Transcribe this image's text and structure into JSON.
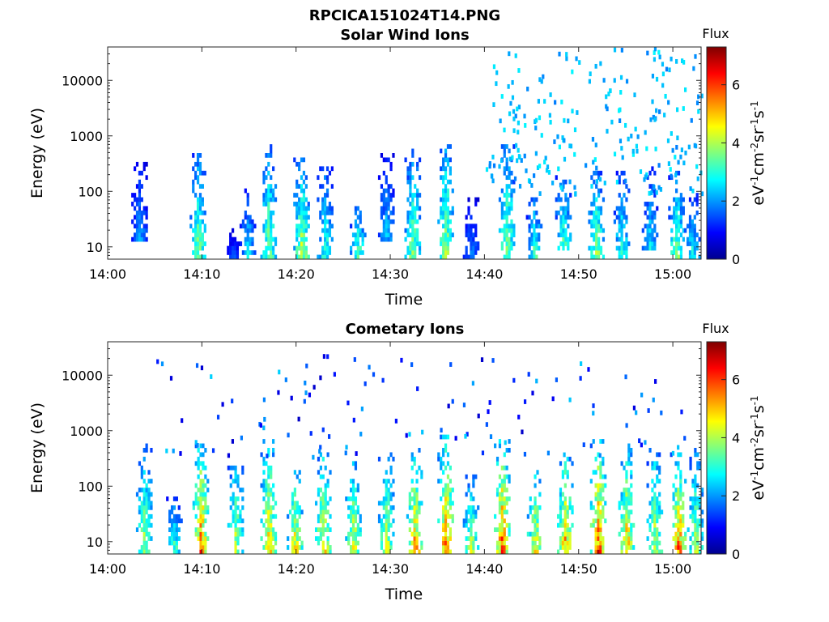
{
  "figure_title": "RPCICA151024T14.PNG",
  "chart_data": [
    {
      "type": "heatmap",
      "title": "Solar Wind Ions",
      "xlabel": "Time",
      "ylabel": "Energy (eV)",
      "x_ticks": [
        "14:00",
        "14:10",
        "14:20",
        "14:30",
        "14:40",
        "14:50",
        "15:00"
      ],
      "x_range_minutes": [
        0,
        63
      ],
      "y_ticks": [
        "10",
        "100",
        "1000",
        "10000"
      ],
      "y_scale": "log",
      "y_range": [
        6,
        40000
      ],
      "colorbar": {
        "label": "Flux",
        "unit": "eV-1cm-2sr-1s-1",
        "ticks": [
          "0",
          "2",
          "4",
          "6"
        ],
        "range": [
          0,
          7.3
        ]
      },
      "bursts": [
        {
          "t": 3.3,
          "emin": 13,
          "emax": 350,
          "peak": 2.2
        },
        {
          "t": 9.5,
          "emin": 6,
          "emax": 450,
          "peak": 4.0
        },
        {
          "t": 13.2,
          "emin": 6,
          "emax": 20,
          "peak": 1.6
        },
        {
          "t": 14.8,
          "emin": 6,
          "emax": 120,
          "peak": 2.8
        },
        {
          "t": 17,
          "emin": 6,
          "emax": 700,
          "peak": 4.0
        },
        {
          "t": 20.5,
          "emin": 6,
          "emax": 400,
          "peak": 4.4
        },
        {
          "t": 23,
          "emin": 6,
          "emax": 300,
          "peak": 3.4
        },
        {
          "t": 26.5,
          "emin": 6,
          "emax": 50,
          "peak": 3.8
        },
        {
          "t": 29.5,
          "emin": 12,
          "emax": 500,
          "peak": 2.5
        },
        {
          "t": 32.3,
          "emin": 6,
          "emax": 600,
          "peak": 4.0
        },
        {
          "t": 35.8,
          "emin": 6,
          "emax": 800,
          "peak": 4.3
        },
        {
          "t": 38.5,
          "emin": 6,
          "emax": 80,
          "peak": 2.0
        },
        {
          "t": 42.3,
          "emin": 6,
          "emax": 700,
          "peak": 4.2
        },
        {
          "t": 45.2,
          "emin": 6,
          "emax": 80,
          "peak": 3.5
        },
        {
          "t": 48.3,
          "emin": 8,
          "emax": 200,
          "peak": 3.6
        },
        {
          "t": 51.8,
          "emin": 6,
          "emax": 250,
          "peak": 4.1
        },
        {
          "t": 54.5,
          "emin": 6,
          "emax": 250,
          "peak": 3.4
        },
        {
          "t": 57.5,
          "emin": 8,
          "emax": 300,
          "peak": 2.8
        },
        {
          "t": 60.3,
          "emin": 6,
          "emax": 220,
          "peak": 4.0
        },
        {
          "t": 62,
          "emin": 6,
          "emax": 100,
          "peak": 3.0
        }
      ],
      "scatter": {
        "tmin": 40,
        "tmax": 63,
        "emin": 80,
        "emax": 35000,
        "count": 230,
        "vmin": 1.8,
        "vmax": 2.7
      }
    },
    {
      "type": "heatmap",
      "title": "Cometary Ions",
      "xlabel": "Time",
      "ylabel": "Energy (eV)",
      "x_ticks": [
        "14:00",
        "14:10",
        "14:20",
        "14:30",
        "14:40",
        "14:50",
        "15:00"
      ],
      "x_range_minutes": [
        0,
        63
      ],
      "y_ticks": [
        "10",
        "100",
        "1000",
        "10000"
      ],
      "y_scale": "log",
      "y_range": [
        6,
        40000
      ],
      "colorbar": {
        "label": "Flux",
        "unit": "eV-1cm-2sr-1s-1",
        "ticks": [
          "0",
          "2",
          "4",
          "6"
        ],
        "range": [
          0,
          7.3
        ]
      },
      "bursts": [
        {
          "t": 3.8,
          "emin": 6,
          "emax": 600,
          "peak": 4.2
        },
        {
          "t": 7,
          "emin": 6,
          "emax": 60,
          "peak": 3.6
        },
        {
          "t": 9.8,
          "emin": 6,
          "emax": 600,
          "peak": 6.0
        },
        {
          "t": 13.5,
          "emin": 6,
          "emax": 300,
          "peak": 4.5
        },
        {
          "t": 17,
          "emin": 6,
          "emax": 800,
          "peak": 5.3
        },
        {
          "t": 19.8,
          "emin": 6,
          "emax": 200,
          "peak": 5.0
        },
        {
          "t": 22.8,
          "emin": 6,
          "emax": 500,
          "peak": 5.2
        },
        {
          "t": 26,
          "emin": 6,
          "emax": 300,
          "peak": 4.8
        },
        {
          "t": 29.5,
          "emin": 6,
          "emax": 400,
          "peak": 4.6
        },
        {
          "t": 32.5,
          "emin": 6,
          "emax": 500,
          "peak": 5.6
        },
        {
          "t": 35.8,
          "emin": 6,
          "emax": 900,
          "peak": 6.0
        },
        {
          "t": 38.5,
          "emin": 6,
          "emax": 150,
          "peak": 4.3
        },
        {
          "t": 41.8,
          "emin": 6,
          "emax": 700,
          "peak": 6.2
        },
        {
          "t": 45.3,
          "emin": 6,
          "emax": 200,
          "peak": 5.1
        },
        {
          "t": 48.5,
          "emin": 6,
          "emax": 350,
          "peak": 5.7
        },
        {
          "t": 52,
          "emin": 6,
          "emax": 700,
          "peak": 6.3
        },
        {
          "t": 55,
          "emin": 6,
          "emax": 600,
          "peak": 5.4
        },
        {
          "t": 58,
          "emin": 6,
          "emax": 500,
          "peak": 4.6
        },
        {
          "t": 60.5,
          "emin": 6,
          "emax": 400,
          "peak": 6.0
        },
        {
          "t": 62.3,
          "emin": 6,
          "emax": 500,
          "peak": 4.3
        }
      ],
      "scatter": {
        "tmin": 5,
        "tmax": 63,
        "emin": 300,
        "emax": 20000,
        "count": 120,
        "vmin": 0.5,
        "vmax": 2.5
      }
    }
  ]
}
